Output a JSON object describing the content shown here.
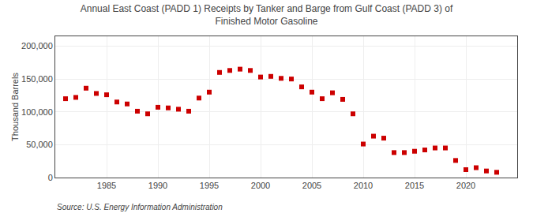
{
  "chart_data": {
    "type": "scatter",
    "title": "Annual East Coast (PADD 1) Receipts by Tanker and Barge from Gulf Coast (PADD 3) of\nFinished Motor Gasoline",
    "ylabel": "Thousand Barrels",
    "annotations": [
      "Source: U.S. Energy Information Administration"
    ],
    "x": [
      1981,
      1982,
      1983,
      1984,
      1985,
      1986,
      1987,
      1988,
      1989,
      1990,
      1991,
      1992,
      1993,
      1994,
      1995,
      1996,
      1997,
      1998,
      1999,
      2000,
      2001,
      2002,
      2003,
      2004,
      2005,
      2006,
      2007,
      2008,
      2009,
      2010,
      2011,
      2012,
      2013,
      2014,
      2015,
      2016,
      2017,
      2018,
      2019,
      2020,
      2021,
      2022,
      2023
    ],
    "values": [
      120000,
      122000,
      136000,
      128000,
      126000,
      115000,
      112000,
      101000,
      97000,
      107000,
      106000,
      104000,
      101000,
      121000,
      130000,
      160000,
      163000,
      165000,
      163000,
      153000,
      154000,
      151000,
      150000,
      138000,
      130000,
      120000,
      129000,
      119000,
      97000,
      51000,
      63000,
      60000,
      38000,
      38000,
      40000,
      42000,
      45000,
      45000,
      26000,
      12000,
      15000,
      10000,
      8000
    ],
    "color": "#cc0000",
    "marker": "square",
    "xlim": [
      1980,
      2025
    ],
    "xticks": [
      1985,
      1990,
      1995,
      2000,
      2005,
      2010,
      2015,
      2020
    ],
    "ylim": [
      0,
      215000
    ],
    "yticks": [
      0,
      {
        "value": 50000,
        "label": "50,000"
      },
      {
        "value": 100000,
        "label": "100,000"
      },
      {
        "value": 150000,
        "label": "150,000"
      },
      {
        "value": 200000,
        "label": "200,000"
      }
    ],
    "grid": true
  }
}
